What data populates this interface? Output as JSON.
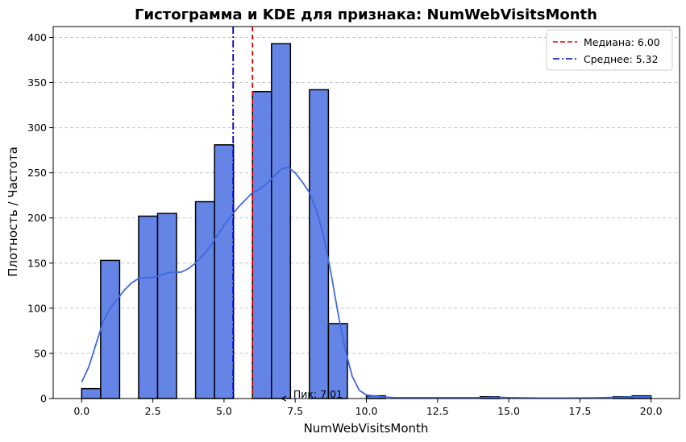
{
  "chart_data": {
    "type": "bar",
    "title": "Гистограмма и KDE для признака: NumWebVisitsMonth",
    "xlabel": "NumWebVisitsMonth",
    "ylabel": "Плотность / Частота",
    "xlim": [
      -1.0,
      21.0
    ],
    "ylim": [
      0,
      412
    ],
    "x_ticks": [
      0.0,
      2.5,
      5.0,
      7.5,
      10.0,
      12.5,
      15.0,
      17.5,
      20.0
    ],
    "x_tick_labels": [
      "0.0",
      "2.5",
      "5.0",
      "7.5",
      "10.0",
      "12.5",
      "15.0",
      "17.5",
      "20.0"
    ],
    "y_ticks": [
      0,
      50,
      100,
      150,
      200,
      250,
      300,
      350,
      400
    ],
    "y_tick_labels": [
      "0",
      "50",
      "100",
      "150",
      "200",
      "250",
      "300",
      "350",
      "400"
    ],
    "grid": "y-dashed",
    "bin_width": 0.6667,
    "bins": [
      {
        "x0": 0.0,
        "value": 11
      },
      {
        "x0": 0.6667,
        "value": 153
      },
      {
        "x0": 2.0,
        "value": 202
      },
      {
        "x0": 2.6667,
        "value": 205
      },
      {
        "x0": 4.0,
        "value": 218
      },
      {
        "x0": 4.6667,
        "value": 281
      },
      {
        "x0": 6.0,
        "value": 340
      },
      {
        "x0": 6.6667,
        "value": 393
      },
      {
        "x0": 8.0,
        "value": 342
      },
      {
        "x0": 8.6667,
        "value": 83
      },
      {
        "x0": 10.0,
        "value": 3
      },
      {
        "x0": 14.0,
        "value": 2
      },
      {
        "x0": 18.6667,
        "value": 2
      },
      {
        "x0": 19.3333,
        "value": 3
      }
    ],
    "kde": {
      "x": [
        0.0,
        0.25,
        0.5,
        0.75,
        1.0,
        1.25,
        1.5,
        1.75,
        2.0,
        2.25,
        2.5,
        2.75,
        3.0,
        3.25,
        3.5,
        3.75,
        4.0,
        4.25,
        4.5,
        4.75,
        5.0,
        5.25,
        5.5,
        5.75,
        6.0,
        6.25,
        6.5,
        6.75,
        7.0,
        7.25,
        7.5,
        7.75,
        8.0,
        8.25,
        8.5,
        8.75,
        9.0,
        9.25,
        9.5,
        9.75,
        10.0,
        10.5,
        11.0,
        12.0,
        13.0,
        14.0,
        14.5,
        15.0,
        16.0,
        17.0,
        18.0,
        19.0,
        19.5,
        20.0
      ],
      "y": [
        18,
        35,
        60,
        85,
        100,
        110,
        120,
        128,
        133,
        134,
        134,
        136,
        139,
        140,
        140,
        144,
        150,
        158,
        168,
        180,
        192,
        202,
        212,
        220,
        228,
        232,
        238,
        246,
        254,
        256,
        250,
        240,
        228,
        208,
        180,
        140,
        95,
        55,
        25,
        9,
        4,
        2,
        1,
        1,
        1,
        1,
        1.5,
        1,
        0.5,
        0.5,
        0.8,
        1.5,
        2,
        2
      ]
    },
    "series": [
      {
        "name": "Медиана: 6.00",
        "value": 6.0,
        "color": "#e00000",
        "style": "dashed"
      },
      {
        "name": "Среднее: 5.32",
        "value": 5.32,
        "color": "#0000c8",
        "style": "dashdot"
      }
    ],
    "legend_position": "top-right",
    "annotation": {
      "text": "Пик: 7.01",
      "x": 7.01,
      "y": 0
    },
    "colors": {
      "bar_fill": "#6484e6",
      "bar_edge": "#000000",
      "kde_line": "#4169e1",
      "grid": "#c8c8c8"
    }
  }
}
